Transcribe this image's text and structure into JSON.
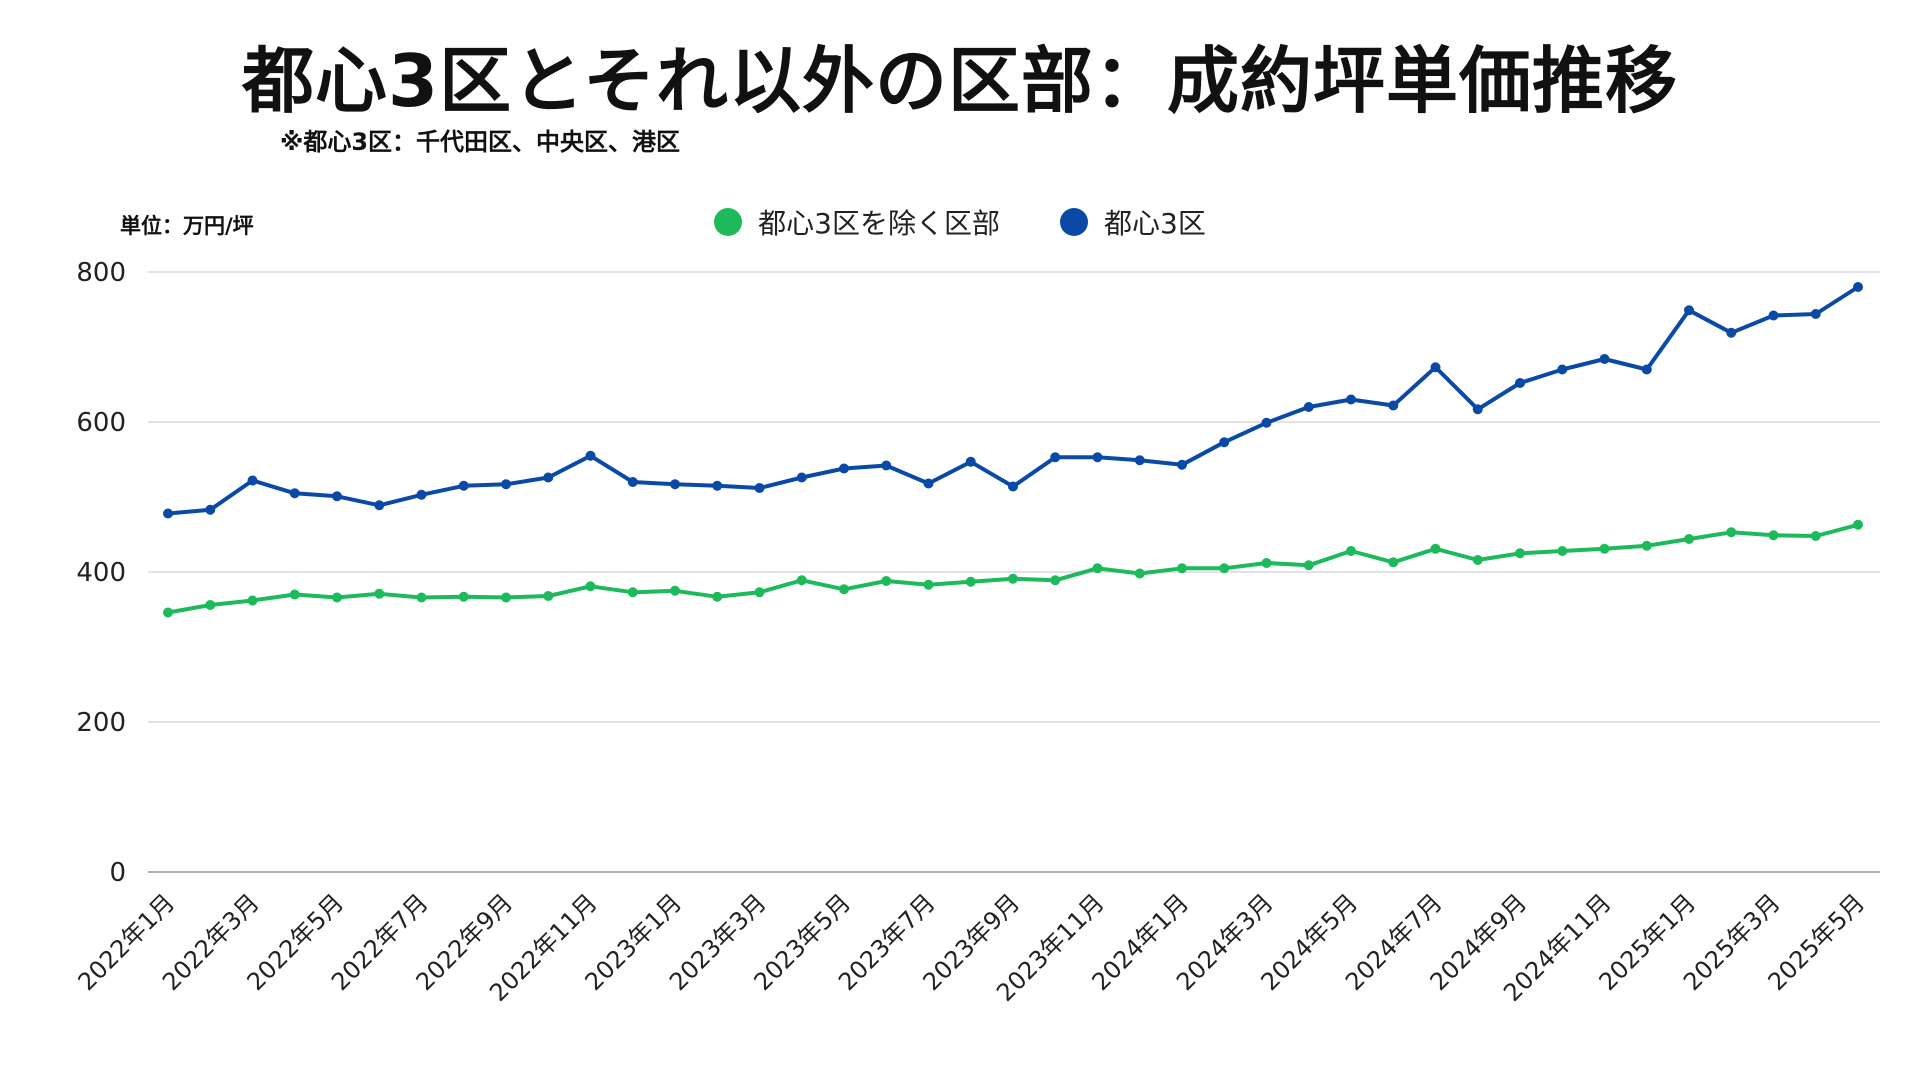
{
  "title": "都心3区とそれ以外の区部：成約坪単価推移",
  "subtitle": "※都心3区：千代田区、中央区、港区",
  "unit_label": "単位：万円/坪",
  "colors": {
    "green": "#1dba5c",
    "blue": "#0a4aa6",
    "grid": "#d9d9d9"
  },
  "chart_data": {
    "type": "line",
    "ylabel": "単位：万円/坪",
    "ylim": [
      0,
      800
    ],
    "y_ticks": [
      0,
      200,
      400,
      600,
      800
    ],
    "grid": true,
    "legend_position": "top-center",
    "x": [
      "2022年1月",
      "2022年2月",
      "2022年3月",
      "2022年4月",
      "2022年5月",
      "2022年6月",
      "2022年7月",
      "2022年8月",
      "2022年9月",
      "2022年10月",
      "2022年11月",
      "2022年12月",
      "2023年1月",
      "2023年2月",
      "2023年3月",
      "2023年4月",
      "2023年5月",
      "2023年6月",
      "2023年7月",
      "2023年8月",
      "2023年9月",
      "2023年10月",
      "2023年11月",
      "2023年12月",
      "2024年1月",
      "2024年2月",
      "2024年3月",
      "2024年4月",
      "2024年5月",
      "2024年6月",
      "2024年7月",
      "2024年8月",
      "2024年9月",
      "2024年10月",
      "2024年11月",
      "2024年12月",
      "2025年1月",
      "2025年2月",
      "2025年3月",
      "2025年4月",
      "2025年5月"
    ],
    "x_tick_labels": [
      "2022年1月",
      "2022年3月",
      "2022年5月",
      "2022年7月",
      "2022年9月",
      "2022年11月",
      "2023年1月",
      "2023年3月",
      "2023年5月",
      "2023年7月",
      "2023年9月",
      "2023年11月",
      "2024年1月",
      "2024年3月",
      "2024年5月",
      "2024年7月",
      "2024年9月",
      "2024年11月",
      "2025年1月",
      "2025年3月",
      "2025年5月"
    ],
    "series": [
      {
        "name": "都心3区を除く区部",
        "color": "#1dba5c",
        "values": [
          346,
          356,
          362,
          370,
          366,
          371,
          366,
          367,
          366,
          368,
          381,
          373,
          375,
          367,
          373,
          389,
          377,
          388,
          383,
          387,
          391,
          389,
          405,
          398,
          405,
          405,
          412,
          409,
          428,
          413,
          431,
          416,
          425,
          428,
          431,
          435,
          444,
          453,
          449,
          448,
          463
        ]
      },
      {
        "name": "都心3区",
        "color": "#0a4aa6",
        "values": [
          478,
          483,
          522,
          505,
          501,
          489,
          503,
          515,
          517,
          526,
          555,
          520,
          517,
          515,
          512,
          526,
          538,
          542,
          518,
          547,
          514,
          553,
          553,
          549,
          543,
          573,
          599,
          620,
          630,
          622,
          673,
          617,
          652,
          670,
          684,
          670,
          749,
          719,
          742,
          744,
          780
        ]
      }
    ]
  }
}
